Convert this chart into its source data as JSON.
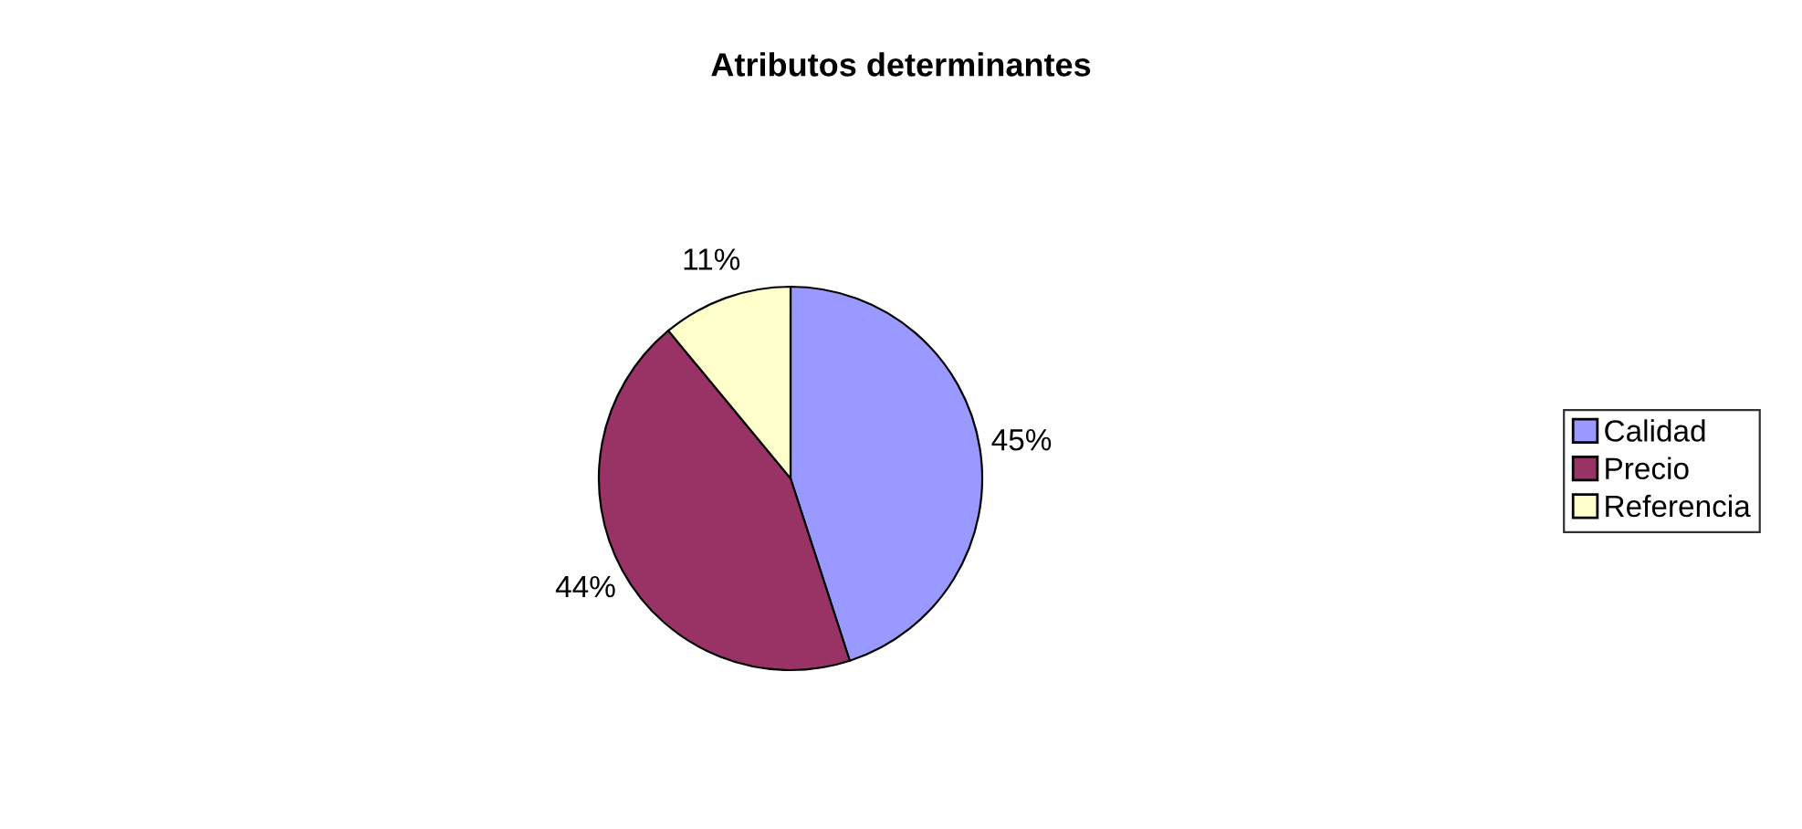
{
  "chart_data": {
    "type": "pie",
    "title": "Atributos determinantes",
    "categories": [
      "Calidad",
      "Precio",
      "Referencia"
    ],
    "values": [
      45,
      44,
      11
    ],
    "colors": [
      "#9999ff",
      "#993366",
      "#ffffcc"
    ],
    "value_labels": [
      "45%",
      "44%",
      "11%"
    ],
    "legend": "right"
  }
}
